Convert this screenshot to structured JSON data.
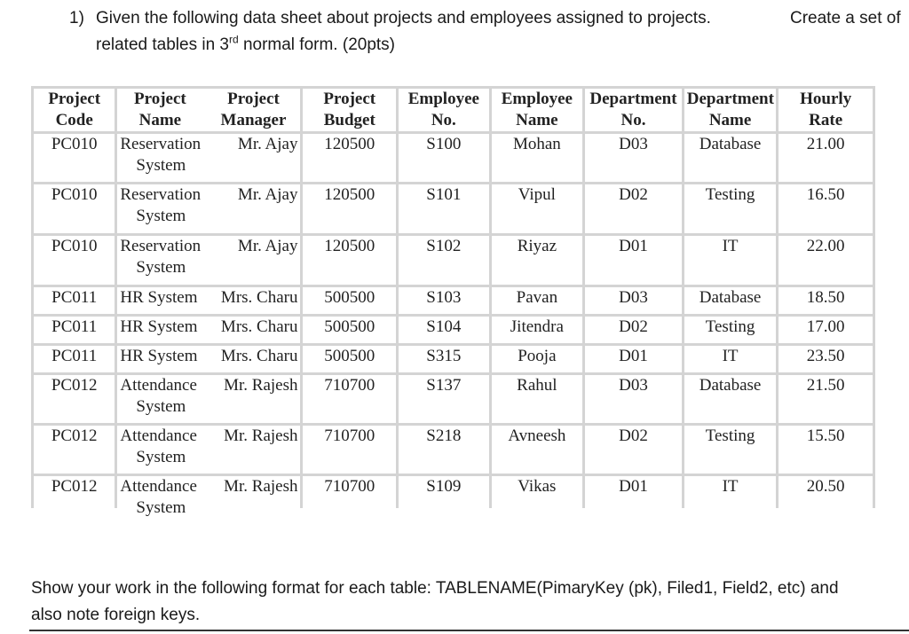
{
  "question": {
    "number": "1)",
    "line1": "Given the following data sheet about projects and employees assigned to projects.",
    "line1_tail": "Create a set of",
    "line2_pre": "related tables in 3",
    "line2_sup": "rd",
    "line2_post": " normal form. (20pts)"
  },
  "table": {
    "headers": {
      "project_code": [
        "Project",
        "Code"
      ],
      "project_name": [
        "Project",
        "Name"
      ],
      "project_manager": [
        "Project",
        "Manager"
      ],
      "project_budget": [
        "Project",
        "Budget"
      ],
      "employee_no": [
        "Employee",
        "No."
      ],
      "employee_name": [
        "Employee",
        "Name"
      ],
      "department_no": [
        "Department",
        "No."
      ],
      "department_name": [
        "Department",
        "Name"
      ],
      "hourly_rate": [
        "Hourly",
        "Rate"
      ]
    },
    "rows": [
      {
        "code": "PC010",
        "name1": "Reservation",
        "name2": "System",
        "manager": "Mr. Ajay",
        "budget": "120500",
        "emp_no": "S100",
        "emp_name": "Mohan",
        "dept_no": "D03",
        "dept_name": "Database",
        "rate": "21.00"
      },
      {
        "code": "PC010",
        "name1": "Reservation",
        "name2": "System",
        "manager": "Mr. Ajay",
        "budget": "120500",
        "emp_no": "S101",
        "emp_name": "Vipul",
        "dept_no": "D02",
        "dept_name": "Testing",
        "rate": "16.50"
      },
      {
        "code": "PC010",
        "name1": "Reservation",
        "name2": "System",
        "manager": "Mr. Ajay",
        "budget": "120500",
        "emp_no": "S102",
        "emp_name": "Riyaz",
        "dept_no": "D01",
        "dept_name": "IT",
        "rate": "22.00"
      },
      {
        "code": "PC011",
        "name1": "HR System",
        "name2": "",
        "manager": "Mrs. Charu",
        "budget": "500500",
        "emp_no": "S103",
        "emp_name": "Pavan",
        "dept_no": "D03",
        "dept_name": "Database",
        "rate": "18.50"
      },
      {
        "code": "PC011",
        "name1": "HR System",
        "name2": "",
        "manager": "Mrs. Charu",
        "budget": "500500",
        "emp_no": "S104",
        "emp_name": "Jitendra",
        "dept_no": "D02",
        "dept_name": "Testing",
        "rate": "17.00"
      },
      {
        "code": "PC011",
        "name1": "HR System",
        "name2": "",
        "manager": "Mrs. Charu",
        "budget": "500500",
        "emp_no": "S315",
        "emp_name": "Pooja",
        "dept_no": "D01",
        "dept_name": "IT",
        "rate": "23.50"
      },
      {
        "code": "PC012",
        "name1": "Attendance",
        "name2": "System",
        "manager": "Mr. Rajesh",
        "budget": "710700",
        "emp_no": "S137",
        "emp_name": "Rahul",
        "dept_no": "D03",
        "dept_name": "Database",
        "rate": "21.50"
      },
      {
        "code": "PC012",
        "name1": "Attendance",
        "name2": "System",
        "manager": "Mr. Rajesh",
        "budget": "710700",
        "emp_no": "S218",
        "emp_name": "Avneesh",
        "dept_no": "D02",
        "dept_name": "Testing",
        "rate": "15.50"
      },
      {
        "code": "PC012",
        "name1": "Attendance",
        "name2": "System",
        "manager": "Mr. Rajesh",
        "budget": "710700",
        "emp_no": "S109",
        "emp_name": "Vikas",
        "dept_no": "D01",
        "dept_name": "IT",
        "rate": "20.50"
      }
    ]
  },
  "footer": {
    "line1": "Show your work in the following format for each table: TABLENAME(PimaryKey (pk), Filed1, Field2, etc) and",
    "line2": "also note foreign keys."
  }
}
